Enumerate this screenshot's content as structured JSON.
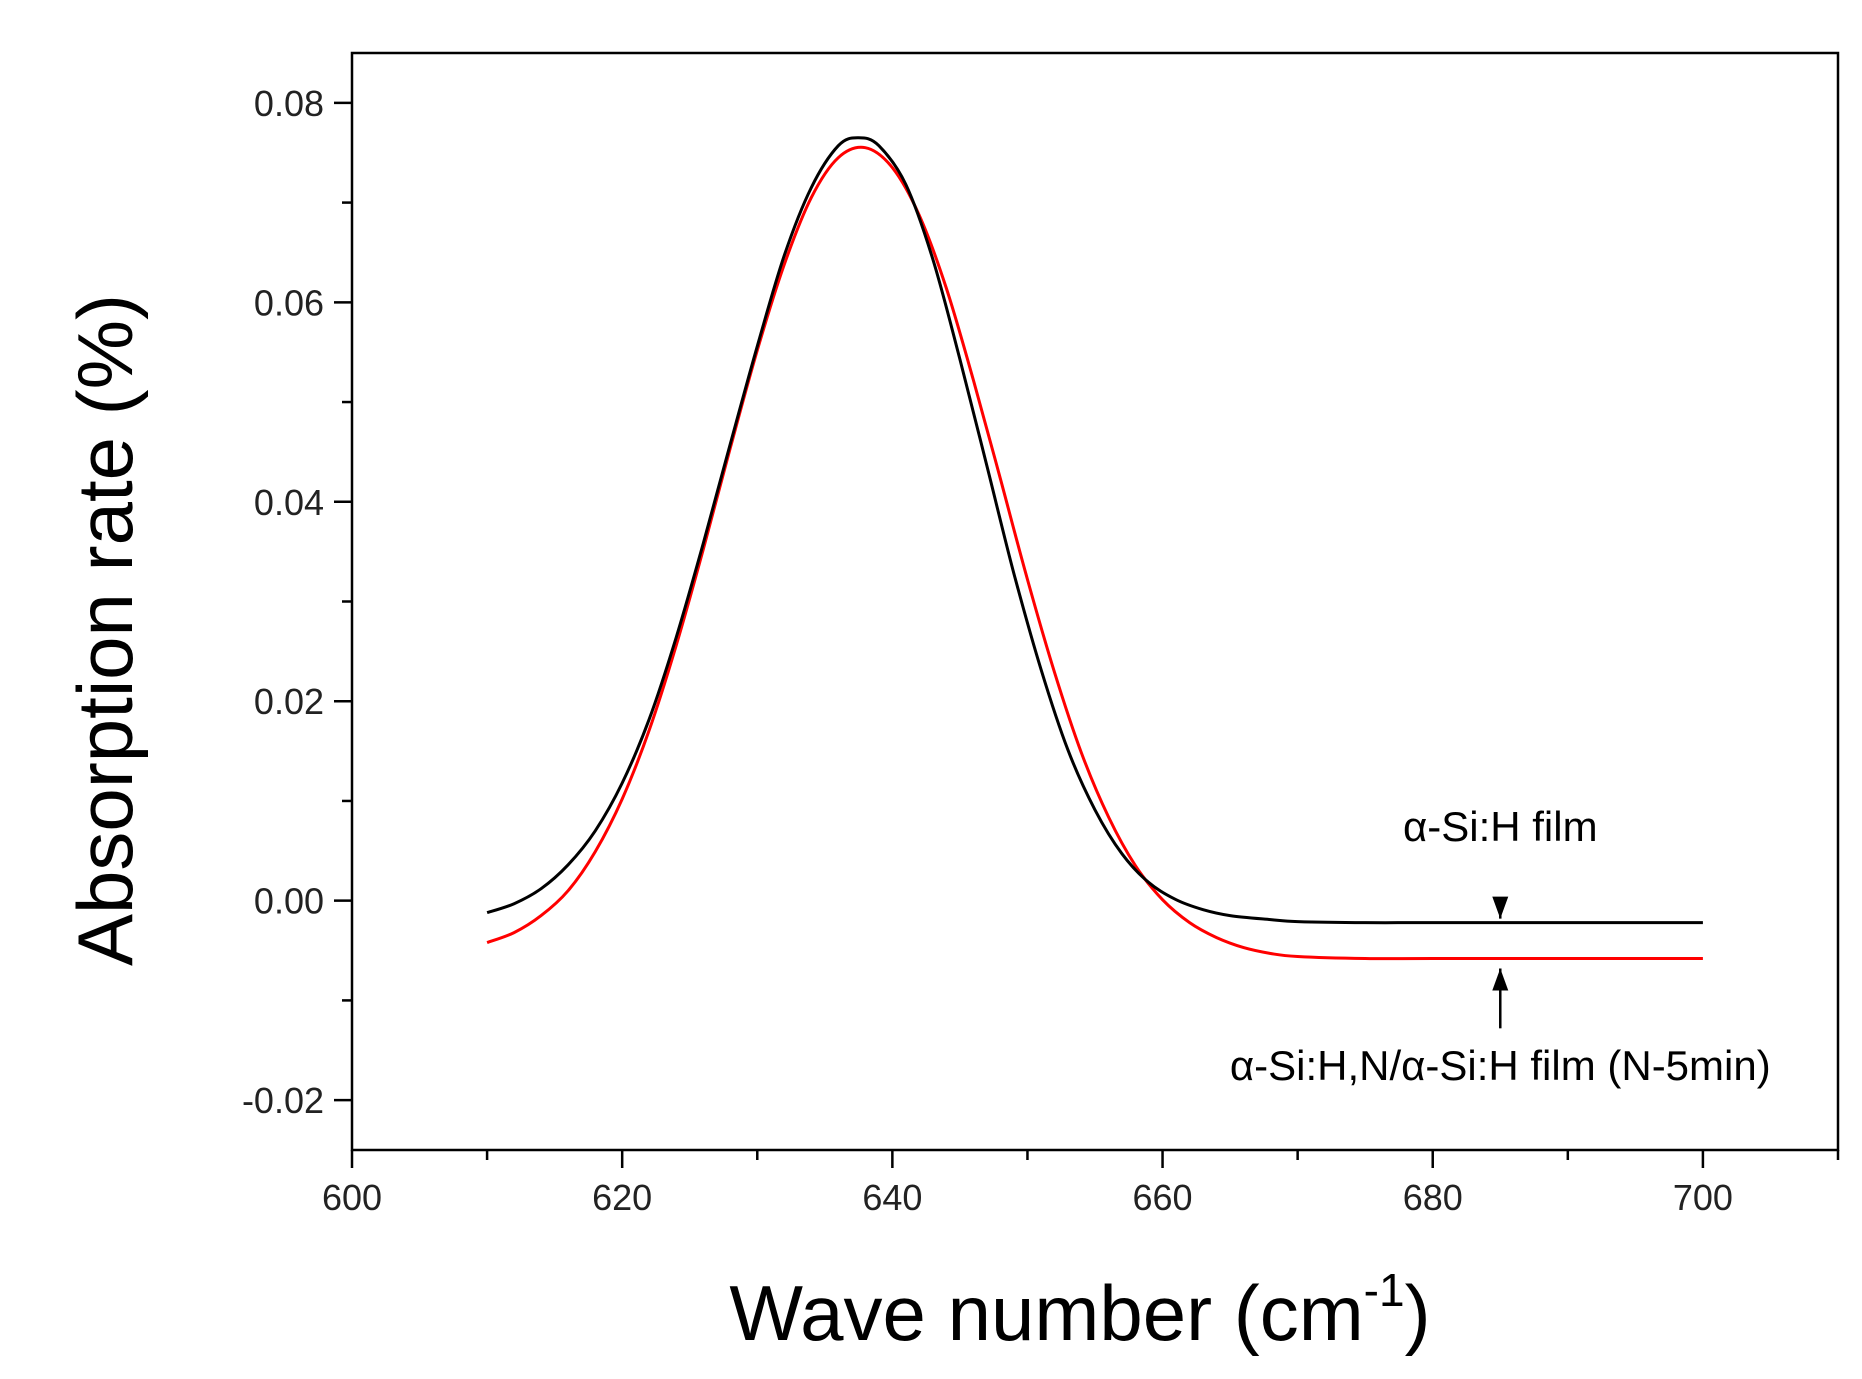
{
  "chart_data": {
    "type": "line",
    "title": "",
    "xlabel": "Wave number (cm",
    "xlabel_superscript": "-1",
    "xlabel_suffix": ")",
    "ylabel": "Absorption rate (%)",
    "xlim": [
      600,
      710
    ],
    "ylim": [
      -0.025,
      0.085
    ],
    "x_ticks": [
      600,
      620,
      640,
      660,
      680,
      700
    ],
    "x_tick_labels": [
      "600",
      "620",
      "640",
      "660",
      "680",
      "700"
    ],
    "y_ticks": [
      -0.02,
      0.0,
      0.02,
      0.04,
      0.06,
      0.08
    ],
    "y_tick_labels": [
      "-0.02",
      "0.00",
      "0.02",
      "0.04",
      "0.06",
      "0.08"
    ],
    "grid": false,
    "series": [
      {
        "name": "α-Si:H film",
        "color": "#000000",
        "x": [
          610,
          612,
          614,
          616,
          618,
          620,
          622,
          624,
          626,
          628,
          630,
          632,
          634,
          636,
          637.5,
          639,
          641,
          643,
          645,
          647,
          649,
          651,
          653,
          655,
          657,
          659,
          661,
          663,
          665,
          668,
          670,
          675,
          680,
          690,
          700
        ],
        "values": [
          -0.0012,
          -0.0003,
          0.0012,
          0.0036,
          0.007,
          0.0118,
          0.0182,
          0.0264,
          0.0358,
          0.0458,
          0.0556,
          0.0647,
          0.0715,
          0.0757,
          0.0765,
          0.0757,
          0.0718,
          0.0643,
          0.0543,
          0.0436,
          0.0328,
          0.0232,
          0.0151,
          0.0091,
          0.0047,
          0.0018,
          0.0001,
          -0.0009,
          -0.0015,
          -0.0019,
          -0.0021,
          -0.0022,
          -0.0022,
          -0.0022,
          -0.0022
        ]
      },
      {
        "name": "α-Si:H,N/α-Si:H film (N-5min)",
        "color": "#ff0000",
        "x": [
          610,
          612,
          614,
          616,
          618,
          620,
          622,
          624,
          626,
          628,
          630,
          632,
          634,
          636,
          638,
          640,
          642,
          644,
          646,
          648,
          650,
          652,
          654,
          656,
          658,
          660,
          662,
          664,
          666,
          668,
          670,
          675,
          680,
          690,
          700
        ],
        "values": [
          -0.0042,
          -0.0032,
          -0.0015,
          0.001,
          0.0049,
          0.0102,
          0.0171,
          0.0256,
          0.0352,
          0.0454,
          0.0552,
          0.0638,
          0.0705,
          0.0745,
          0.0755,
          0.0735,
          0.0687,
          0.0614,
          0.0522,
          0.0423,
          0.0322,
          0.0229,
          0.0148,
          0.0084,
          0.0035,
          0.0001,
          -0.0022,
          -0.0037,
          -0.0047,
          -0.0053,
          -0.0056,
          -0.0058,
          -0.0058,
          -0.0058,
          -0.0058
        ]
      }
    ],
    "annotations": [
      {
        "text": "α-Si:H film",
        "x": 685,
        "y": 0.0075,
        "arrow_from": [
          685,
          -0.0005
        ],
        "arrow_to": [
          685,
          -0.0018
        ],
        "anchor": "middle"
      },
      {
        "text": "α-Si:H,N/α-Si:H film (N-5min)",
        "x": 685,
        "y": -0.0165,
        "arrow_from": [
          685,
          -0.0128
        ],
        "arrow_to": [
          685,
          -0.0068
        ],
        "anchor": "middle"
      }
    ]
  }
}
